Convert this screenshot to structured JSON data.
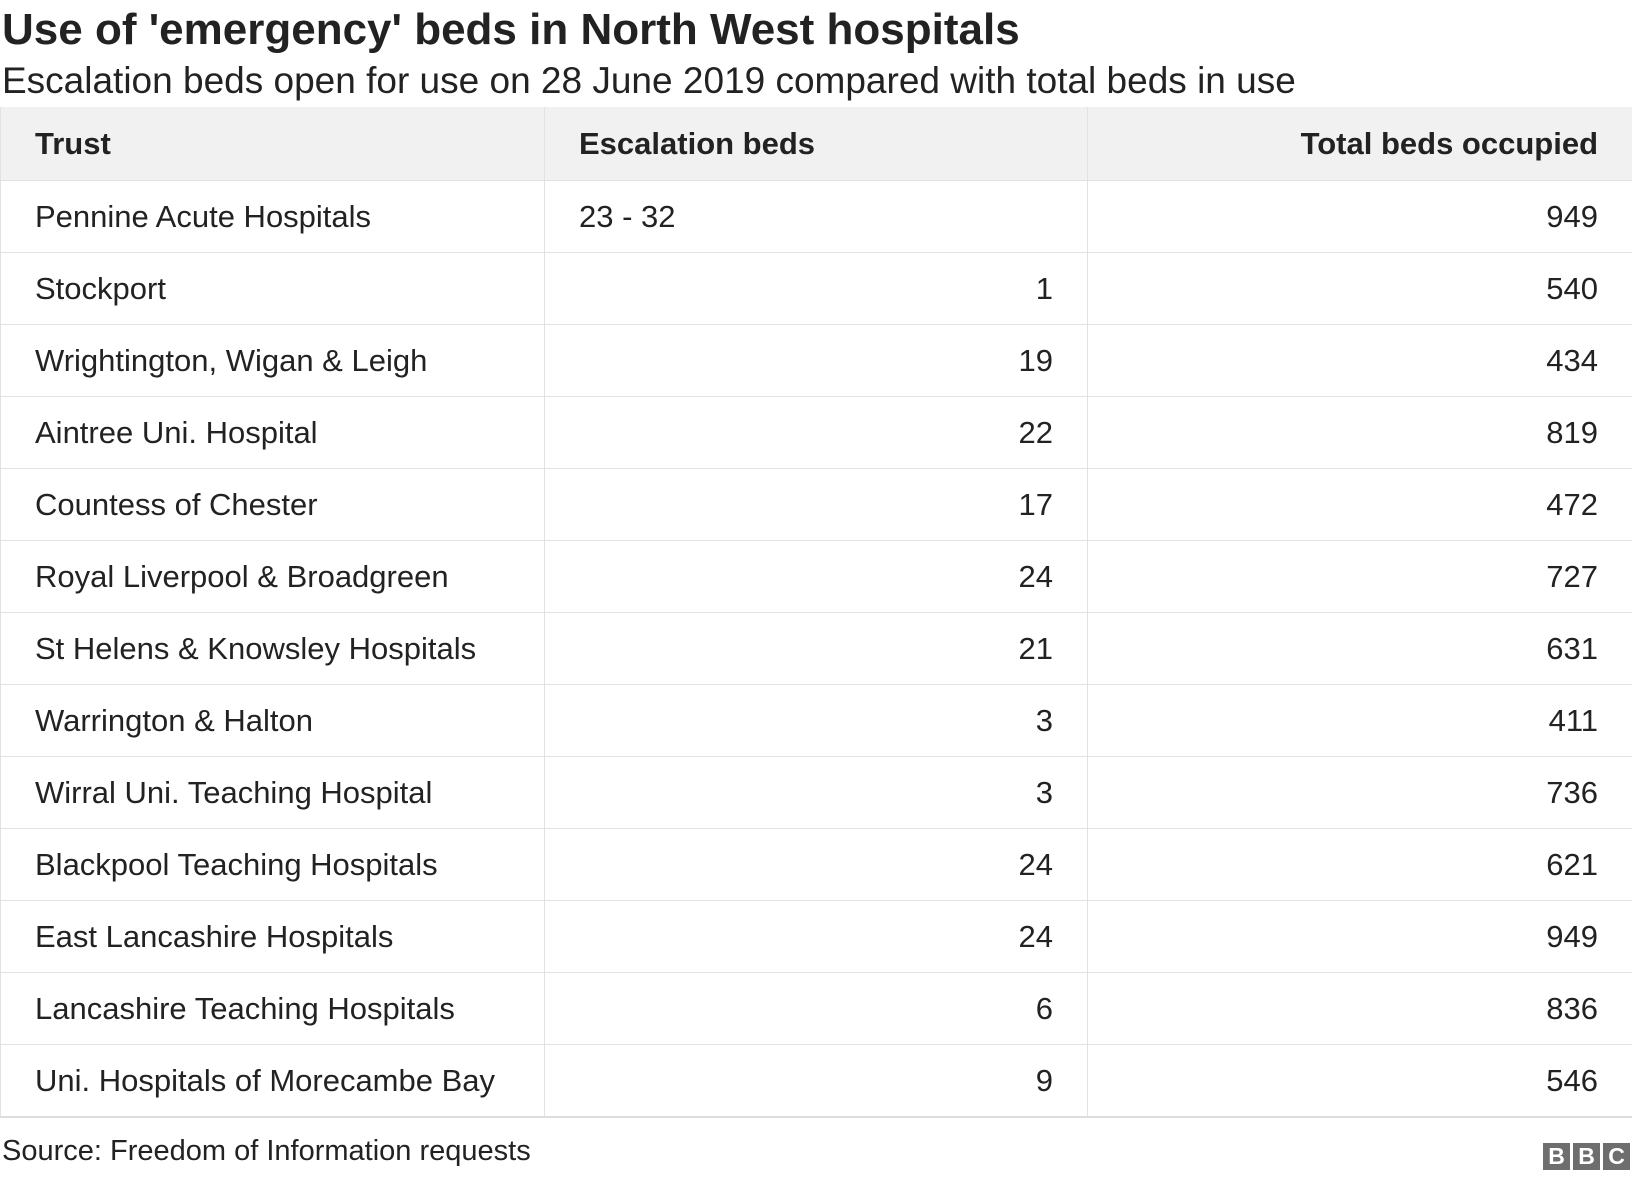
{
  "title": "Use of 'emergency' beds in North West hospitals",
  "subtitle": "Escalation beds open for use on 28 June 2019 compared with total beds in use",
  "source": "Source: Freedom of Information requests",
  "logo": [
    "B",
    "B",
    "C"
  ],
  "chart_data": {
    "type": "table",
    "columns": [
      "Trust",
      "Escalation beds",
      "Total beds occupied"
    ],
    "rows": [
      [
        "Pennine Acute Hospitals",
        "23 - 32",
        "949"
      ],
      [
        "Stockport",
        "1",
        "540"
      ],
      [
        "Wrightington, Wigan & Leigh",
        "19",
        "434"
      ],
      [
        "Aintree Uni. Hospital",
        "22",
        "819"
      ],
      [
        "Countess of Chester",
        "17",
        "472"
      ],
      [
        "Royal Liverpool & Broadgreen",
        "24",
        "727"
      ],
      [
        "St Helens & Knowsley Hospitals",
        "21",
        "631"
      ],
      [
        "Warrington & Halton",
        "3",
        "411"
      ],
      [
        "Wirral Uni. Teaching Hospital",
        "3",
        "736"
      ],
      [
        "Blackpool Teaching Hospitals",
        "24",
        "621"
      ],
      [
        "East Lancashire Hospitals",
        "24",
        "949"
      ],
      [
        "Lancashire Teaching Hospitals",
        "6",
        "836"
      ],
      [
        "Uni. Hospitals of Morecambe Bay",
        "9",
        "546"
      ]
    ],
    "header_background": "#f1f1f1",
    "grid_color": "#e2e2e2"
  }
}
